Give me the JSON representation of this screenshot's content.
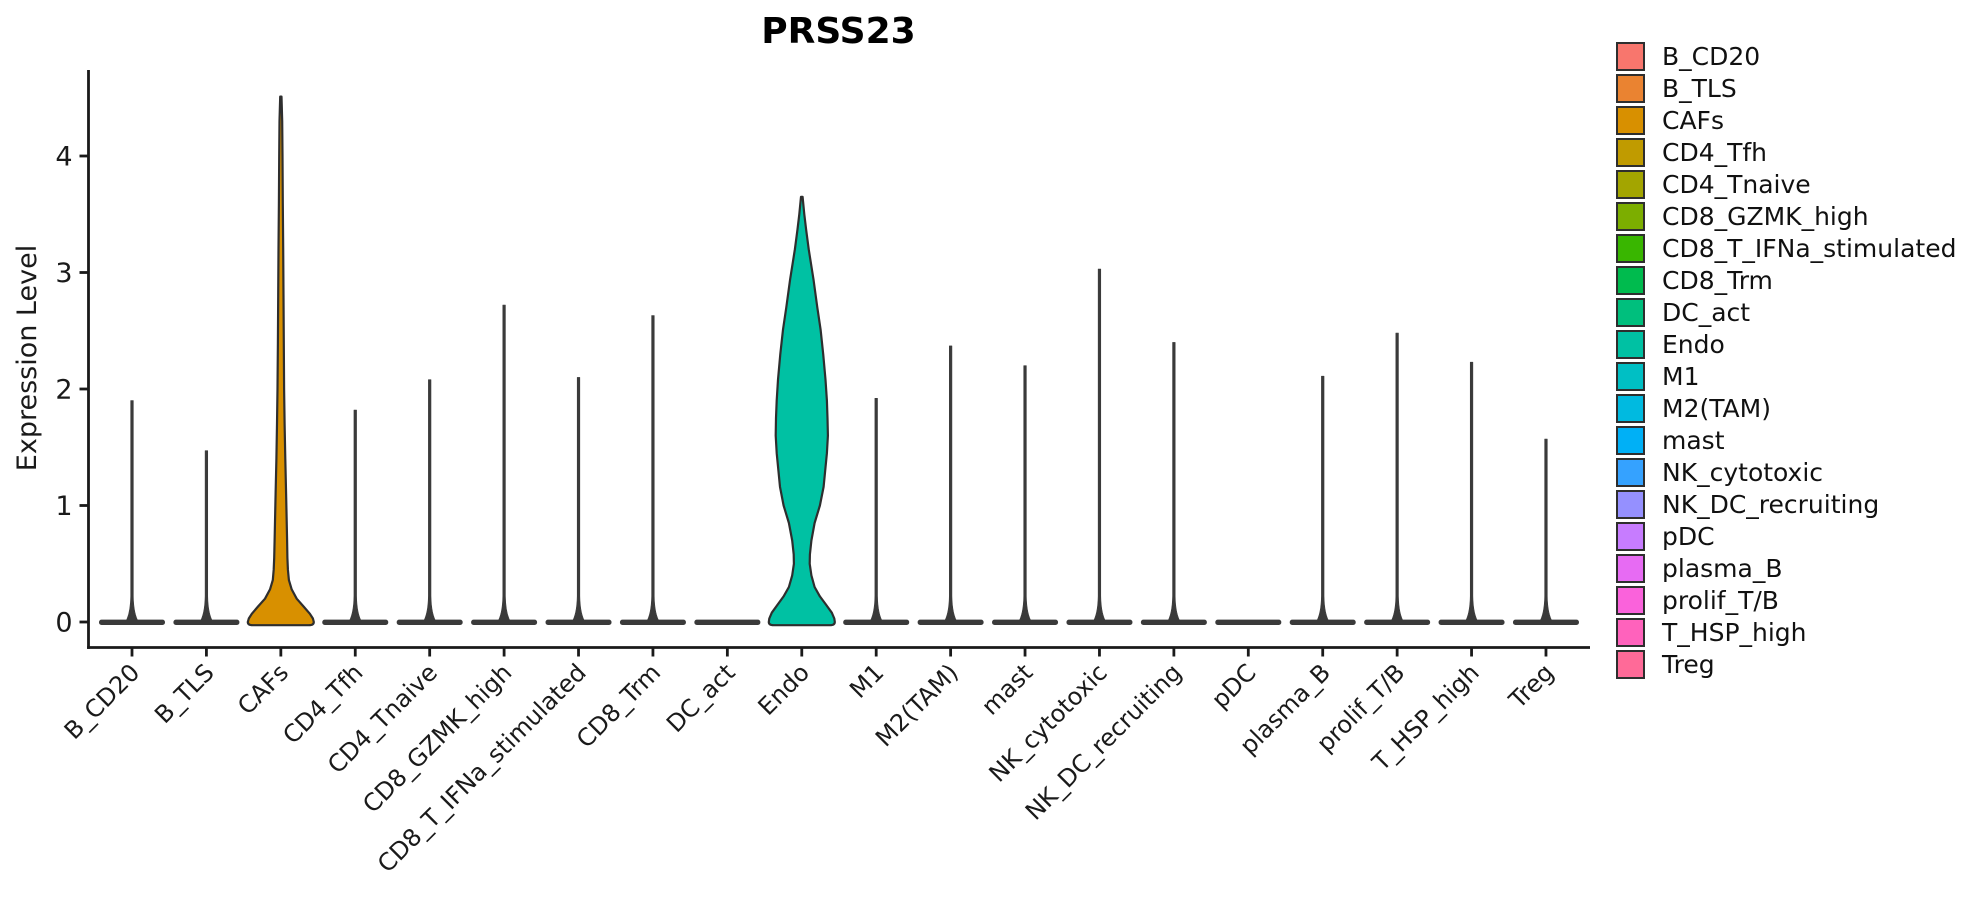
{
  "figure": {
    "background": "#ffffff",
    "axis_color": "#1a1a1a",
    "ink_color": "#3a3a3a",
    "violin_outline_color": "#2e2e2e"
  },
  "chart_data": {
    "type": "violin",
    "title": "PRSS23",
    "xlabel": "",
    "ylabel": "Expression Level",
    "ylim": [
      0,
      4.75
    ],
    "yticks": [
      0,
      1,
      2,
      3,
      4
    ],
    "grid": "off",
    "legend_position": "right",
    "categories": [
      "B_CD20",
      "B_TLS",
      "CAFs",
      "CD4_Tfh",
      "CD4_Tnaive",
      "CD8_GZMK_high",
      "CD8_T_IFNa_stimulated",
      "CD8_Trm",
      "DC_act",
      "Endo",
      "M1",
      "M2(TAM)",
      "mast",
      "NK_cytotoxic",
      "NK_DC_recruiting",
      "pDC",
      "plasma_B",
      "prolif_T/B",
      "T_HSP_high",
      "Treg"
    ],
    "colors": [
      "#F8766D",
      "#EA8331",
      "#D89000",
      "#C09B00",
      "#A3A500",
      "#7CAE00",
      "#39B600",
      "#00BB4E",
      "#00BF7D",
      "#00C1A3",
      "#00BFC4",
      "#00BAE0",
      "#00B0F6",
      "#35A2FF",
      "#9590FF",
      "#C77CFF",
      "#E76BF3",
      "#FA62DB",
      "#FF62BC",
      "#FF6A98"
    ],
    "max_expression": [
      1.9,
      1.47,
      4.51,
      1.82,
      2.08,
      2.72,
      2.1,
      2.63,
      0,
      3.65,
      1.92,
      2.37,
      2.2,
      3.03,
      2.4,
      0,
      2.11,
      2.48,
      2.23,
      1.57
    ],
    "zero_density_bar": true,
    "violin_profiles": {
      "CAFs": [
        [
          4.51,
          0.02
        ],
        [
          4.3,
          0.04
        ],
        [
          4.0,
          0.05
        ],
        [
          3.6,
          0.06
        ],
        [
          3.2,
          0.07
        ],
        [
          2.8,
          0.08
        ],
        [
          2.4,
          0.09
        ],
        [
          2.0,
          0.1
        ],
        [
          1.7,
          0.115
        ],
        [
          1.4,
          0.135
        ],
        [
          1.1,
          0.16
        ],
        [
          0.9,
          0.175
        ],
        [
          0.7,
          0.19
        ],
        [
          0.55,
          0.2
        ],
        [
          0.45,
          0.215
        ],
        [
          0.36,
          0.245
        ],
        [
          0.28,
          0.33
        ],
        [
          0.2,
          0.48
        ],
        [
          0.13,
          0.7
        ],
        [
          0.07,
          0.88
        ],
        [
          0.03,
          0.97
        ],
        [
          0.0,
          1.0
        ]
      ],
      "Endo": [
        [
          3.65,
          0.025
        ],
        [
          3.5,
          0.075
        ],
        [
          3.37,
          0.13
        ],
        [
          3.2,
          0.21
        ],
        [
          2.94,
          0.355
        ],
        [
          2.7,
          0.47
        ],
        [
          2.51,
          0.57
        ],
        [
          2.3,
          0.65
        ],
        [
          2.08,
          0.72
        ],
        [
          1.9,
          0.76
        ],
        [
          1.75,
          0.78
        ],
        [
          1.6,
          0.79
        ],
        [
          1.45,
          0.76
        ],
        [
          1.3,
          0.71
        ],
        [
          1.16,
          0.66
        ],
        [
          1.0,
          0.55
        ],
        [
          0.85,
          0.39
        ],
        [
          0.7,
          0.29
        ],
        [
          0.58,
          0.245
        ],
        [
          0.5,
          0.24
        ],
        [
          0.4,
          0.29
        ],
        [
          0.3,
          0.39
        ],
        [
          0.22,
          0.55
        ],
        [
          0.15,
          0.73
        ],
        [
          0.08,
          0.91
        ],
        [
          0.03,
          0.985
        ],
        [
          0.0,
          1.0
        ]
      ]
    }
  }
}
